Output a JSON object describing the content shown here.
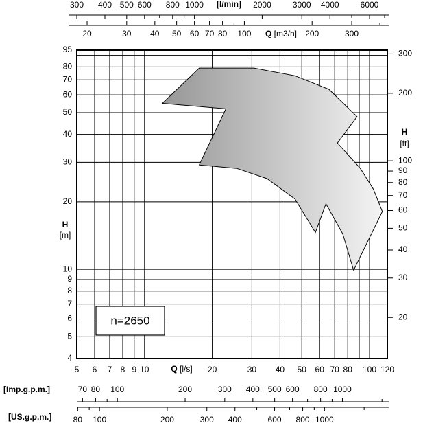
{
  "chart_data": {
    "type": "area",
    "log_scale": true,
    "grid": true,
    "annotation": "n=2650",
    "x_label": {
      "symbol": "Q",
      "unit": "[l/s]"
    },
    "y_label": {
      "symbol": "H",
      "unit": "[m]"
    },
    "xlim": [
      5,
      120
    ],
    "xticks": [
      5,
      6,
      7,
      8,
      9,
      10,
      20,
      30,
      40,
      50,
      60,
      70,
      80,
      100,
      120
    ],
    "xticks_minor": [
      90
    ],
    "ylim": [
      4,
      95
    ],
    "yticks": [
      4,
      5,
      6,
      7,
      8,
      9,
      10,
      20,
      30,
      40,
      50,
      60,
      70,
      80,
      95
    ],
    "yticks_minor": [
      90
    ],
    "y2_label": {
      "symbol": "H",
      "unit": "[ft]"
    },
    "y2lim": [
      13.12,
      311.7
    ],
    "y2ticks": [
      20,
      30,
      40,
      50,
      60,
      70,
      80,
      90,
      100,
      200,
      300
    ],
    "extra_x_axes": [
      {
        "side": "top",
        "label": "[l/min]",
        "lim": [
          300,
          7200
        ],
        "ticks": [
          300,
          400,
          500,
          600,
          800,
          1000,
          2000,
          3000,
          4000,
          6000
        ],
        "minor_ticks": [
          700,
          900,
          5000,
          7000
        ]
      },
      {
        "side": "top",
        "label": {
          "symbol": "Q",
          "unit": "[m3/h]"
        },
        "lim": [
          18,
          432
        ],
        "ticks": [
          20,
          30,
          40,
          50,
          60,
          70,
          80,
          100,
          200,
          300
        ],
        "minor_ticks": [
          90,
          400
        ]
      },
      {
        "side": "bottom",
        "label": "[Imp.g.p.m.]",
        "lim": [
          66,
          1584
        ],
        "ticks": [
          70,
          80,
          100,
          200,
          300,
          400,
          500,
          600,
          800,
          1000
        ],
        "minor_ticks": [
          90,
          700,
          900,
          1500
        ]
      },
      {
        "side": "bottom",
        "label": "[US.g.p.m.]",
        "lim": [
          79.25,
          1902
        ],
        "ticks": [
          80,
          100,
          200,
          300,
          400,
          600,
          800,
          1000
        ],
        "minor_ticks": [
          90,
          500,
          700,
          900,
          1500
        ]
      }
    ],
    "series": [
      {
        "colors": [
          "#969696",
          "#f4f4f4"
        ],
        "x": [
          12.0,
          17.5,
          30.6,
          46.6,
          66,
          88,
          72,
          91,
          104,
          114,
          85,
          76,
          64,
          57.5,
          46.6,
          35,
          25.7,
          17.5,
          23
        ],
        "values": [
          55,
          79,
          79,
          73,
          63.5,
          48,
          36.6,
          28.2,
          22.8,
          18.1,
          9.9,
          14.4,
          19.6,
          14.6,
          20.6,
          25.4,
          28.2,
          29.2,
          52
        ]
      }
    ]
  }
}
